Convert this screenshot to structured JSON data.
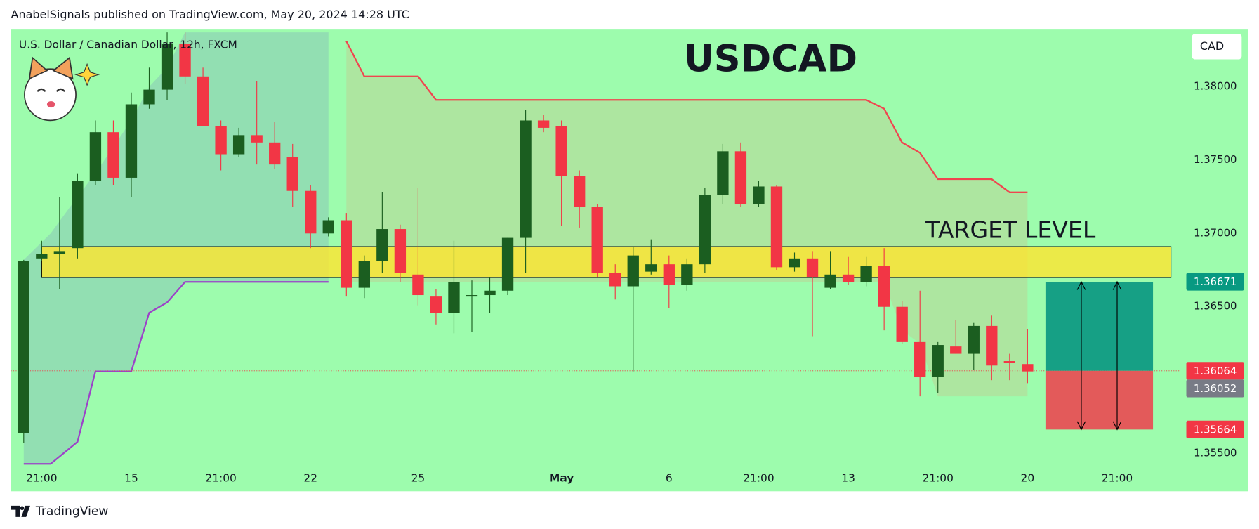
{
  "header": {
    "text": "AnabelSignals published on TradingView.com, May 20, 2024 14:28 UTC"
  },
  "footer": {
    "brand": "TradingView"
  },
  "chart_data": {
    "type": "candlestick",
    "title": "USDCAD",
    "symbol": "U.S. Dollar / Canadian Dollar, 12h, FXCM",
    "currency_button": "CAD",
    "annotation": "TARGET LEVEL",
    "grid": false,
    "up_color": "#1b5e20",
    "down_color": "#f23645",
    "candles": [
      [
        1.3564,
        1.3682,
        1.3557,
        1.3681
      ],
      [
        1.3683,
        1.3695,
        1.3681,
        1.3686
      ],
      [
        1.3686,
        1.3725,
        1.3662,
        1.3688
      ],
      [
        1.369,
        1.3741,
        1.3683,
        1.3736
      ],
      [
        1.3736,
        1.3777,
        1.3733,
        1.3769
      ],
      [
        1.3769,
        1.3777,
        1.3733,
        1.3738
      ],
      [
        1.3738,
        1.3796,
        1.3725,
        1.3788
      ],
      [
        1.3788,
        1.3813,
        1.3785,
        1.3798
      ],
      [
        1.3798,
        1.3837,
        1.3791,
        1.3829
      ],
      [
        1.3829,
        1.3837,
        1.3802,
        1.3807
      ],
      [
        1.3807,
        1.3813,
        1.3773,
        1.3773
      ],
      [
        1.3773,
        1.3777,
        1.3743,
        1.3754
      ],
      [
        1.3754,
        1.3772,
        1.3752,
        1.3767
      ],
      [
        1.3767,
        1.3804,
        1.3747,
        1.3762
      ],
      [
        1.3762,
        1.3776,
        1.3744,
        1.3747
      ],
      [
        1.3752,
        1.3761,
        1.3718,
        1.3729
      ],
      [
        1.3729,
        1.3733,
        1.369,
        1.37
      ],
      [
        1.37,
        1.3711,
        1.3698,
        1.3709
      ],
      [
        1.3709,
        1.3714,
        1.3657,
        1.3663
      ],
      [
        1.3663,
        1.3685,
        1.3656,
        1.3681
      ],
      [
        1.3681,
        1.3728,
        1.3673,
        1.3703
      ],
      [
        1.3703,
        1.3706,
        1.3667,
        1.3673
      ],
      [
        1.3672,
        1.3731,
        1.3651,
        1.3658
      ],
      [
        1.3657,
        1.3662,
        1.3638,
        1.3646
      ],
      [
        1.3646,
        1.3695,
        1.3632,
        1.3667
      ],
      [
        1.3657,
        1.3668,
        1.3633,
        1.3658
      ],
      [
        1.3658,
        1.367,
        1.3646,
        1.3661
      ],
      [
        1.3661,
        1.3697,
        1.3658,
        1.3697
      ],
      [
        1.3697,
        1.3784,
        1.3673,
        1.3777
      ],
      [
        1.3777,
        1.3781,
        1.3769,
        1.3772
      ],
      [
        1.3773,
        1.3777,
        1.3705,
        1.3739
      ],
      [
        1.3739,
        1.3743,
        1.3704,
        1.3718
      ],
      [
        1.3718,
        1.372,
        1.367,
        1.3673
      ],
      [
        1.3673,
        1.3679,
        1.3655,
        1.3664
      ],
      [
        1.3664,
        1.3691,
        1.3606,
        1.3685
      ],
      [
        1.3674,
        1.3696,
        1.3672,
        1.3679
      ],
      [
        1.3679,
        1.3685,
        1.3649,
        1.3665
      ],
      [
        1.3665,
        1.3683,
        1.3661,
        1.3679
      ],
      [
        1.3679,
        1.3731,
        1.3673,
        1.3726
      ],
      [
        1.3726,
        1.3761,
        1.372,
        1.3756
      ],
      [
        1.3756,
        1.3762,
        1.3718,
        1.372
      ],
      [
        1.372,
        1.3736,
        1.3718,
        1.3732
      ],
      [
        1.3732,
        1.3733,
        1.3675,
        1.3677
      ],
      [
        1.3677,
        1.3687,
        1.3674,
        1.3683
      ],
      [
        1.3683,
        1.3688,
        1.363,
        1.367
      ],
      [
        1.3663,
        1.3688,
        1.3662,
        1.3672
      ],
      [
        1.3672,
        1.3684,
        1.3665,
        1.3667
      ],
      [
        1.3667,
        1.3684,
        1.3664,
        1.3678
      ],
      [
        1.3678,
        1.369,
        1.3634,
        1.365
      ],
      [
        1.365,
        1.3654,
        1.3625,
        1.3626
      ],
      [
        1.3626,
        1.3661,
        1.3589,
        1.3602
      ],
      [
        1.3602,
        1.3626,
        1.3591,
        1.3624
      ],
      [
        1.3623,
        1.3641,
        1.3618,
        1.3618
      ],
      [
        1.3618,
        1.3639,
        1.3607,
        1.3637
      ],
      [
        1.3637,
        1.3644,
        1.36,
        1.361
      ],
      [
        1.3613,
        1.3618,
        1.36,
        1.3612
      ],
      [
        1.3611,
        1.3635,
        1.3598,
        1.3606
      ]
    ],
    "xlim": [
      -0.716,
      64.5
    ],
    "xticks": [
      {
        "value": 1,
        "label": "21:00"
      },
      {
        "value": 6,
        "label": "15"
      },
      {
        "value": 11,
        "label": "21:00"
      },
      {
        "value": 16,
        "label": "22"
      },
      {
        "value": 22,
        "label": "25"
      },
      {
        "value": 30,
        "label": "May"
      },
      {
        "value": 36,
        "label": "6"
      },
      {
        "value": 41,
        "label": "21:00"
      },
      {
        "value": 46,
        "label": "13"
      },
      {
        "value": 51,
        "label": "21:00"
      },
      {
        "value": 56,
        "label": "20"
      },
      {
        "value": 61,
        "label": "21:00"
      }
    ],
    "ylim": [
      1.35429,
      1.38394
    ],
    "yticks": [
      {
        "value": 1.38,
        "label": "1.38000"
      },
      {
        "value": 1.375,
        "label": "1.37500"
      },
      {
        "value": 1.37,
        "label": "1.37000"
      },
      {
        "value": 1.365,
        "label": "1.36500"
      },
      {
        "value": 1.355,
        "label": "1.35500"
      }
    ],
    "left_channel": {
      "x": [
        0,
        1.5,
        3,
        4,
        6,
        7,
        8,
        9,
        17
      ],
      "upper": [
        1.3682,
        1.37,
        1.3725,
        1.3741,
        1.3777,
        1.38,
        1.3813,
        1.3837,
        1.3837
      ],
      "lower": [
        1.3543,
        1.3543,
        1.3558,
        1.3606,
        1.3606,
        1.3646,
        1.3653,
        1.3667,
        1.3667
      ],
      "fill": "#8fd6b4",
      "line_color": "#9c42c8"
    },
    "right_channel": {
      "x": [
        18,
        19,
        22,
        23,
        47,
        48,
        49,
        50,
        51,
        54,
        55,
        56
      ],
      "upper": [
        1.3831,
        1.3807,
        1.3807,
        1.3791,
        1.3791,
        1.3785,
        1.3762,
        1.3755,
        1.3737,
        1.3737,
        1.3728,
        1.3728
      ],
      "lower": [
        1.3667,
        1.3667,
        1.3667,
        1.3667,
        1.3667,
        1.3667,
        1.3634,
        1.3625,
        1.3589,
        1.3589,
        1.3589,
        1.3589
      ],
      "fill": "#b3df9c",
      "line_color": "#f0454f"
    },
    "zone": {
      "top": 1.3691,
      "bottom": 1.367,
      "x_start": 1,
      "x_end": 64,
      "color": "#ffe52e"
    },
    "position": {
      "target": 1.36671,
      "entry": 1.36064,
      "stop": 1.35664,
      "x_start": 57,
      "x_end": 63,
      "profit_color": "#16a085",
      "loss_color": "#e35a5a"
    },
    "price_tags": [
      {
        "value": 1.36671,
        "color": "#089981"
      },
      {
        "value": 1.36064,
        "color": "#f23645"
      },
      {
        "value": 1.36052,
        "color": "#787b86"
      },
      {
        "value": 1.35664,
        "color": "#f23645"
      }
    ]
  }
}
